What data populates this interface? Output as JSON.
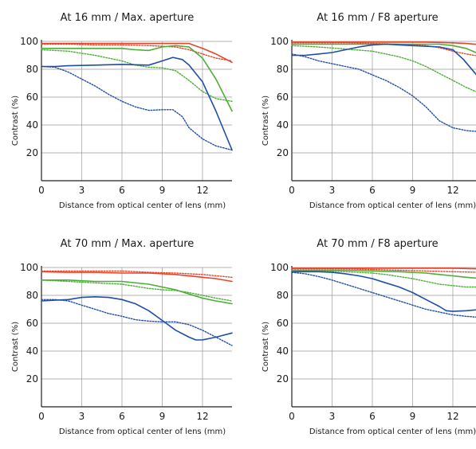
{
  "colors": {
    "red": "#e8442a",
    "green": "#4caf34",
    "blue": "#1f4ea8",
    "grid": "#9a9a9a",
    "axis": "#222222"
  },
  "chart_data": [
    {
      "type": "line",
      "title": "At 16 mm / Max. aperture",
      "xlabel": "Distance from optical center of lens (mm)",
      "ylabel": "Contrast (%)",
      "xlim": [
        0,
        14.2
      ],
      "ylim": [
        0,
        100
      ],
      "xticks": [
        0,
        3,
        6,
        9,
        12
      ],
      "yticks": [
        20,
        40,
        60,
        80,
        100
      ],
      "grid": true,
      "series": [
        {
          "color": "red",
          "style": "solid",
          "x": [
            0,
            2,
            4,
            6,
            8,
            10,
            11,
            12,
            13,
            14.2
          ],
          "y": [
            98.5,
            98.5,
            98.5,
            98.5,
            98.5,
            98.5,
            98.5,
            95,
            91,
            85
          ]
        },
        {
          "color": "red",
          "style": "dotted",
          "x": [
            0,
            2,
            4,
            6,
            8,
            10,
            11,
            12,
            13,
            14.2
          ],
          "y": [
            98,
            98,
            97.5,
            97.5,
            97,
            96,
            94,
            91,
            88,
            86
          ]
        },
        {
          "color": "green",
          "style": "solid",
          "x": [
            0,
            2,
            4,
            6,
            7,
            8,
            9,
            10,
            11,
            12,
            13,
            14.2
          ],
          "y": [
            95,
            95,
            95,
            95,
            94,
            93.5,
            96,
            97,
            96,
            88,
            73,
            50
          ]
        },
        {
          "color": "green",
          "style": "dotted",
          "x": [
            0,
            2,
            4,
            6,
            7,
            8,
            9,
            10,
            11,
            12,
            13,
            14.2
          ],
          "y": [
            94,
            93,
            90,
            86,
            83,
            81.5,
            81,
            79,
            72,
            64,
            59,
            57
          ]
        },
        {
          "color": "blue",
          "style": "solid",
          "x": [
            0,
            1,
            2,
            4,
            6,
            8,
            9,
            9.8,
            10.5,
            11,
            12,
            13,
            14.2
          ],
          "y": [
            82,
            82,
            82.5,
            83,
            83.5,
            83,
            86,
            88.5,
            87,
            83,
            71,
            50,
            22
          ]
        },
        {
          "color": "blue",
          "style": "dotted",
          "x": [
            0,
            1,
            2,
            3,
            4,
            5,
            6,
            7,
            8,
            9,
            9.8,
            10.5,
            11,
            12,
            13,
            14.2
          ],
          "y": [
            82,
            81.5,
            78,
            73,
            68,
            62,
            57,
            53,
            50.5,
            51,
            51,
            46,
            38,
            30,
            25,
            22
          ]
        }
      ]
    },
    {
      "type": "line",
      "title": "At 16 mm / F8 aperture",
      "xlabel": "Distance from optical center of lens (mm)",
      "ylabel": "Contrast (%)",
      "xlim": [
        0,
        14.2
      ],
      "ylim": [
        0,
        100
      ],
      "xticks": [
        0,
        3,
        6,
        9,
        12
      ],
      "yticks": [
        20,
        40,
        60,
        80,
        100
      ],
      "grid": true,
      "series": [
        {
          "color": "red",
          "style": "solid",
          "x": [
            0,
            2,
            4,
            6,
            8,
            10,
            12,
            13,
            14.2
          ],
          "y": [
            99.5,
            99.5,
            99.5,
            99.5,
            99.5,
            99.5,
            99,
            98.5,
            97.5
          ]
        },
        {
          "color": "red",
          "style": "dotted",
          "x": [
            0,
            2,
            4,
            6,
            8,
            10,
            11,
            12,
            13,
            14.2
          ],
          "y": [
            99,
            99,
            99,
            98.5,
            98,
            97,
            95.5,
            93,
            91,
            89
          ]
        },
        {
          "color": "green",
          "style": "solid",
          "x": [
            0,
            2,
            4,
            6,
            8,
            10,
            11,
            12,
            13,
            14.2
          ],
          "y": [
            98,
            98,
            98,
            98,
            98,
            98,
            98,
            97,
            95,
            90
          ]
        },
        {
          "color": "green",
          "style": "dotted",
          "x": [
            0,
            2,
            4,
            6,
            7,
            8,
            9,
            10,
            11,
            12,
            13,
            14.2
          ],
          "y": [
            97,
            96,
            94.5,
            93,
            91,
            89,
            86,
            82,
            77,
            72,
            67,
            62
          ]
        },
        {
          "color": "blue",
          "style": "solid",
          "x": [
            0,
            1,
            2,
            3,
            4,
            5,
            6,
            7,
            8,
            9,
            10,
            11,
            12,
            12.8,
            13.5,
            14.2
          ],
          "y": [
            90,
            90,
            91,
            92,
            94,
            96,
            97.5,
            98,
            97.5,
            97,
            96.5,
            96,
            94,
            87,
            79,
            71
          ]
        },
        {
          "color": "blue",
          "style": "dotted",
          "x": [
            0,
            1,
            2,
            3,
            4,
            5,
            6,
            7,
            8,
            9,
            10,
            11,
            12,
            13,
            14.2
          ],
          "y": [
            91,
            89,
            86,
            84,
            82,
            80,
            76,
            72,
            67,
            61,
            53,
            43,
            38,
            36,
            35
          ]
        }
      ]
    },
    {
      "type": "line",
      "title": "At 70 mm / Max. aperture",
      "xlabel": "Distance from optical center of lens (mm)",
      "ylabel": "Contrast (%)",
      "xlim": [
        0,
        14.2
      ],
      "ylim": [
        0,
        100
      ],
      "xticks": [
        0,
        3,
        6,
        9,
        12
      ],
      "yticks": [
        20,
        40,
        60,
        80,
        100
      ],
      "grid": true,
      "series": [
        {
          "color": "red",
          "style": "solid",
          "x": [
            0,
            2,
            4,
            6,
            8,
            10,
            12,
            13,
            14.2
          ],
          "y": [
            97,
            96.5,
            96.5,
            96,
            96,
            95,
            93,
            92,
            90
          ]
        },
        {
          "color": "red",
          "style": "dotted",
          "x": [
            0,
            2,
            4,
            6,
            8,
            10,
            12,
            14.2
          ],
          "y": [
            97.5,
            97.5,
            97.5,
            97.5,
            96.5,
            96,
            95,
            93
          ]
        },
        {
          "color": "green",
          "style": "solid",
          "x": [
            0,
            2,
            4,
            6,
            8,
            9,
            10,
            11,
            12,
            13,
            14.2
          ],
          "y": [
            91,
            91,
            90,
            90,
            88,
            86,
            84,
            81,
            78,
            76,
            74
          ]
        },
        {
          "color": "green",
          "style": "dotted",
          "x": [
            0,
            2,
            4,
            6,
            7,
            8,
            9,
            10,
            11,
            12,
            13,
            14.2
          ],
          "y": [
            91,
            90,
            89,
            88,
            86.5,
            85,
            84,
            83.5,
            82,
            80,
            78,
            76
          ]
        },
        {
          "color": "blue",
          "style": "solid",
          "x": [
            0,
            1,
            2,
            3,
            4,
            5,
            6,
            7,
            8,
            9,
            10,
            11,
            11.5,
            12,
            13,
            14.2
          ],
          "y": [
            76,
            76.5,
            77,
            78.5,
            79,
            78.5,
            77,
            74,
            69,
            62,
            55,
            50,
            48,
            48,
            50,
            53
          ]
        },
        {
          "color": "blue",
          "style": "dotted",
          "x": [
            0,
            1,
            2,
            3,
            4,
            5,
            6,
            7,
            8,
            9,
            10,
            11,
            12,
            13,
            14.2
          ],
          "y": [
            77,
            77,
            76,
            73,
            70,
            67,
            65,
            62.5,
            61.5,
            61,
            61,
            59,
            55,
            50,
            44
          ]
        }
      ]
    },
    {
      "type": "line",
      "title": "At 70 mm / F8 aperture",
      "xlabel": "Distance from optical center of lens (mm)",
      "ylabel": "Contrast (%)",
      "xlim": [
        0,
        14.2
      ],
      "ylim": [
        0,
        100
      ],
      "xticks": [
        0,
        3,
        6,
        9,
        12
      ],
      "yticks": [
        20,
        40,
        60,
        80,
        100
      ],
      "grid": true,
      "series": [
        {
          "color": "red",
          "style": "solid",
          "x": [
            0,
            2,
            4,
            6,
            8,
            10,
            12,
            14.2
          ],
          "y": [
            99.5,
            99.5,
            99.5,
            99.5,
            99.5,
            99.5,
            99.5,
            99
          ]
        },
        {
          "color": "red",
          "style": "dotted",
          "x": [
            0,
            2,
            4,
            6,
            8,
            10,
            12,
            14.2
          ],
          "y": [
            99,
            99,
            99,
            98.5,
            98,
            97.5,
            97,
            96.5
          ]
        },
        {
          "color": "green",
          "style": "solid",
          "x": [
            0,
            2,
            4,
            6,
            8,
            10,
            11,
            12,
            13,
            14.2
          ],
          "y": [
            98,
            98,
            98,
            97.5,
            97,
            96,
            95,
            94,
            93,
            92
          ]
        },
        {
          "color": "green",
          "style": "dotted",
          "x": [
            0,
            2,
            4,
            6,
            7,
            8,
            9,
            10,
            11,
            12,
            13,
            14.2
          ],
          "y": [
            97.5,
            97.5,
            97,
            96,
            95,
            93.5,
            92,
            90,
            88,
            87,
            86,
            86
          ]
        },
        {
          "color": "blue",
          "style": "solid",
          "x": [
            0,
            1,
            2,
            3,
            4,
            5,
            6,
            7,
            8,
            9,
            10,
            11,
            11.5,
            12,
            13,
            14.2
          ],
          "y": [
            97,
            97,
            97,
            96.5,
            95.5,
            94,
            92,
            89,
            86,
            82,
            77,
            72,
            69,
            68.5,
            69,
            70
          ]
        },
        {
          "color": "blue",
          "style": "dotted",
          "x": [
            0,
            1,
            2,
            3,
            4,
            5,
            6,
            7,
            8,
            9,
            10,
            11,
            12,
            13,
            14.2
          ],
          "y": [
            96.5,
            95.5,
            93.5,
            91,
            88,
            85,
            82,
            79,
            76,
            73,
            70,
            68,
            66,
            65,
            64
          ]
        }
      ]
    }
  ]
}
